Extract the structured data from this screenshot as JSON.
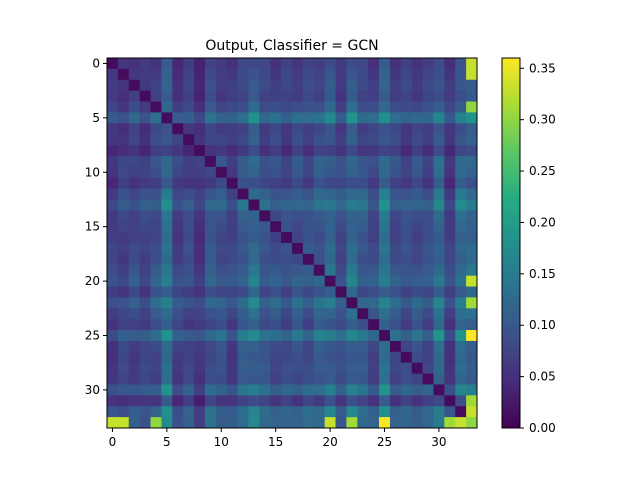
{
  "chart_data": {
    "type": "heatmap",
    "title": "Output, Classifier = GCN",
    "xlabel": "",
    "ylabel": "",
    "n": 34,
    "x_ticks": [
      0,
      5,
      10,
      15,
      20,
      25,
      30
    ],
    "y_ticks": [
      0,
      5,
      10,
      15,
      20,
      25,
      30
    ],
    "colorbar": {
      "min": 0.0,
      "max": 0.36,
      "ticks": [
        0.0,
        0.05,
        0.1,
        0.15,
        0.2,
        0.25,
        0.3,
        0.35
      ],
      "colormap": "viridis"
    },
    "row_strength": [
      0.05,
      0.06,
      0.07,
      0.06,
      0.09,
      0.19,
      0.06,
      0.07,
      0.04,
      0.1,
      0.09,
      0.06,
      0.12,
      0.17,
      0.1,
      0.09,
      0.08,
      0.1,
      0.09,
      0.12,
      0.15,
      0.08,
      0.17,
      0.11,
      0.08,
      0.2,
      0.09,
      0.08,
      0.09,
      0.08,
      0.17,
      0.05,
      0.17,
      0.17
    ],
    "bright_pairs": [
      {
        "row": 33,
        "col": 0,
        "value": 0.33
      },
      {
        "row": 33,
        "col": 1,
        "value": 0.33
      },
      {
        "row": 33,
        "col": 4,
        "value": 0.3
      },
      {
        "row": 33,
        "col": 20,
        "value": 0.33
      },
      {
        "row": 33,
        "col": 22,
        "value": 0.31
      },
      {
        "row": 33,
        "col": 25,
        "value": 0.36
      },
      {
        "row": 33,
        "col": 31,
        "value": 0.31
      },
      {
        "row": 33,
        "col": 32,
        "value": 0.33
      },
      {
        "row": 33,
        "col": 33,
        "value": 0.3
      }
    ],
    "diagonal_value": 0.01
  }
}
